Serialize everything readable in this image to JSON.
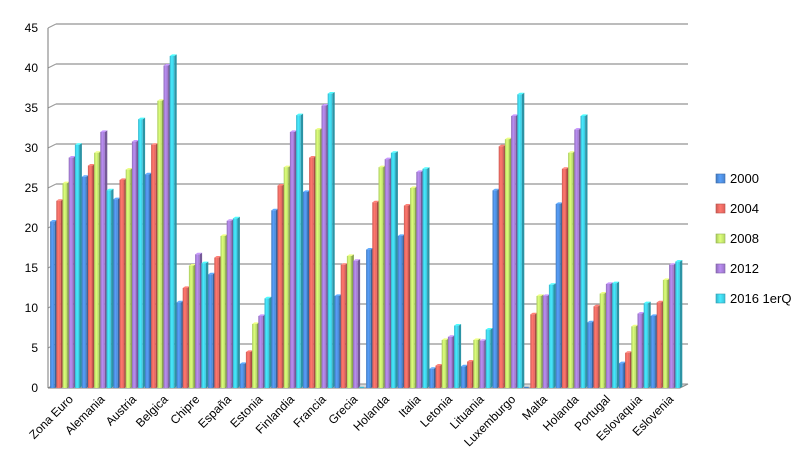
{
  "chart_data": {
    "type": "bar",
    "style": "3d-clustered",
    "categories": [
      "Zona Euro",
      "Alemania",
      "Austria",
      "Belgica",
      "Chipre",
      "España",
      "Estonia",
      "Finlandia",
      "Francia",
      "Grecia",
      "Holanda",
      "Italia",
      "Letonia",
      "Lituania",
      "Luxemburgo",
      "Malta",
      "Holanda",
      "Portugal",
      "Eslovaquia",
      "Eslovenia"
    ],
    "series": [
      {
        "name": "2000",
        "color": "#4f8fe0",
        "values": [
          20.8,
          26.4,
          23.6,
          26.7,
          10.7,
          14.2,
          3.0,
          22.2,
          24.5,
          11.5,
          17.3,
          19.0,
          2.4,
          2.7,
          24.7,
          0,
          23.0,
          8.2,
          3.1,
          9.0
        ]
      },
      {
        "name": "2004",
        "color": "#f26b63",
        "values": [
          23.4,
          27.8,
          26.0,
          30.4,
          12.5,
          16.3,
          4.5,
          25.3,
          28.8,
          15.4,
          23.2,
          22.8,
          2.8,
          3.3,
          30.2,
          9.2,
          27.4,
          10.2,
          4.4,
          10.7
        ]
      },
      {
        "name": "2008",
        "color": "#c6ec6e",
        "values": [
          25.6,
          29.4,
          27.3,
          35.9,
          15.3,
          19.0,
          8.0,
          27.6,
          32.3,
          16.5,
          27.6,
          25.0,
          6.0,
          6.0,
          31.1,
          11.5,
          29.4,
          11.8,
          7.7,
          13.5
        ]
      },
      {
        "name": "2012",
        "color": "#a77fd9",
        "values": [
          28.8,
          32.0,
          30.8,
          40.3,
          16.7,
          20.9,
          9.0,
          32.0,
          35.3,
          15.9,
          28.6,
          27.0,
          6.4,
          5.9,
          34.0,
          11.5,
          32.3,
          13.0,
          9.3,
          15.4
        ]
      },
      {
        "name": "2016 1erQ",
        "color": "#3fd3ec",
        "values": [
          30.4,
          24.7,
          33.6,
          41.5,
          15.6,
          21.2,
          11.2,
          34.1,
          36.8,
          0,
          29.4,
          27.4,
          7.8,
          7.3,
          36.7,
          12.9,
          34.0,
          13.1,
          10.6,
          15.8
        ]
      }
    ],
    "y_ticks": [
      "0",
      "5",
      "10",
      "15",
      "20",
      "25",
      "30",
      "35",
      "40",
      "45"
    ],
    "ylim": [
      0,
      45
    ],
    "grid": true,
    "legend_position": "right"
  }
}
